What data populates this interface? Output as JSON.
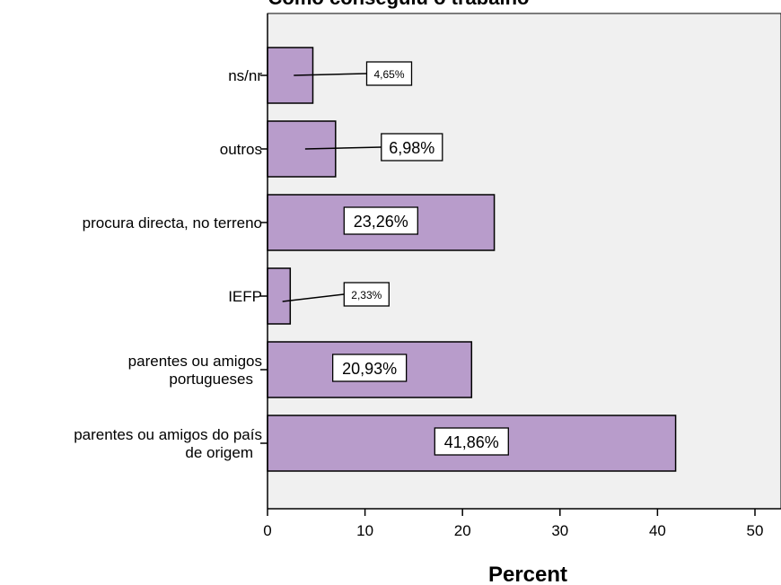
{
  "chart_data": {
    "type": "bar",
    "orientation": "horizontal",
    "title": "Como conseguiu o trabalho",
    "xlabel": "Percent",
    "ylabel": "",
    "xlim": [
      0,
      50
    ],
    "xticks": [
      0,
      10,
      20,
      30,
      40,
      50
    ],
    "grid": false,
    "categories": [
      [
        "ns/nr"
      ],
      [
        "outros"
      ],
      [
        "procura directa, no terreno"
      ],
      [
        "IEFP"
      ],
      [
        "parentes ou amigos",
        "portugueses"
      ],
      [
        "parentes ou amigos do país",
        "de origem"
      ]
    ],
    "values": [
      4.65,
      6.98,
      23.26,
      2.33,
      20.93,
      41.86
    ],
    "data_labels": [
      "4,65%",
      "6,98%",
      "23,26%",
      "2,33%",
      "20,93%",
      "41,86%"
    ],
    "colors": {
      "bar_fill": "#b89ccb",
      "bar_stroke": "#000000",
      "plot_background": "#f0f0f0"
    }
  }
}
